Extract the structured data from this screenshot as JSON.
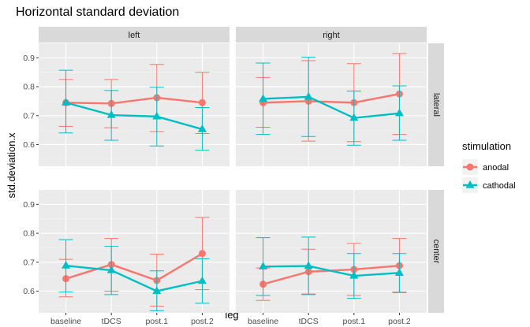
{
  "chart_data": {
    "type": "line",
    "title": "Horizontal standard deviation",
    "xlabel": "leg",
    "ylabel": "std.deviation.x",
    "categories": [
      "baseline",
      "tDCS",
      "post.1",
      "post.2"
    ],
    "ylim": [
      0.525,
      0.95
    ],
    "yticks": [
      0.6,
      0.7,
      0.8,
      0.9
    ],
    "ytick_labels": [
      "0.6",
      "0.7",
      "0.8",
      "0.9"
    ],
    "col_facets": [
      "left",
      "right"
    ],
    "row_facets": [
      "lateral",
      "center"
    ],
    "legend": {
      "title": "stimulation",
      "placement": "right",
      "entries": [
        {
          "name": "anodal",
          "color": "#F8766D",
          "marker": "circle"
        },
        {
          "name": "cathodal",
          "color": "#00BFC4",
          "marker": "triangle"
        }
      ]
    },
    "grid": true,
    "panels": [
      {
        "leg": "left",
        "position": "lateral",
        "series": [
          {
            "name": "anodal",
            "values": [
              0.745,
              0.742,
              0.762,
              0.745
            ],
            "err_low": [
              0.663,
              0.658,
              0.645,
              0.638
            ],
            "err_high": [
              0.825,
              0.825,
              0.877,
              0.85
            ]
          },
          {
            "name": "cathodal",
            "values": [
              0.745,
              0.702,
              0.697,
              0.653
            ],
            "err_low": [
              0.64,
              0.615,
              0.595,
              0.58
            ],
            "err_high": [
              0.857,
              0.787,
              0.798,
              0.728
            ]
          }
        ]
      },
      {
        "leg": "right",
        "position": "lateral",
        "series": [
          {
            "name": "anodal",
            "values": [
              0.745,
              0.75,
              0.745,
              0.775
            ],
            "err_low": [
              0.66,
              0.612,
              0.61,
              0.635
            ],
            "err_high": [
              0.832,
              0.89,
              0.88,
              0.915
            ]
          },
          {
            "name": "cathodal",
            "values": [
              0.758,
              0.765,
              0.692,
              0.708
            ],
            "err_low": [
              0.635,
              0.628,
              0.598,
              0.615
            ],
            "err_high": [
              0.882,
              0.902,
              0.785,
              0.803
            ]
          }
        ]
      },
      {
        "leg": "left",
        "position": "center",
        "series": [
          {
            "name": "anodal",
            "values": [
              0.643,
              0.692,
              0.637,
              0.73
            ],
            "err_low": [
              0.58,
              0.6,
              0.548,
              0.605
            ],
            "err_high": [
              0.71,
              0.782,
              0.728,
              0.855
            ]
          },
          {
            "name": "cathodal",
            "values": [
              0.688,
              0.672,
              0.6,
              0.635
            ],
            "err_low": [
              0.597,
              0.588,
              0.532,
              0.558
            ],
            "err_high": [
              0.778,
              0.755,
              0.67,
              0.712
            ]
          }
        ]
      },
      {
        "leg": "right",
        "position": "center",
        "series": [
          {
            "name": "anodal",
            "values": [
              0.624,
              0.667,
              0.675,
              0.688
            ],
            "err_low": [
              0.568,
              0.59,
              0.585,
              0.597
            ],
            "err_high": [
              0.68,
              0.745,
              0.765,
              0.782
            ]
          },
          {
            "name": "cathodal",
            "values": [
              0.685,
              0.687,
              0.653,
              0.663
            ],
            "err_low": [
              0.585,
              0.588,
              0.575,
              0.595
            ],
            "err_high": [
              0.785,
              0.787,
              0.73,
              0.73
            ]
          }
        ]
      }
    ]
  }
}
